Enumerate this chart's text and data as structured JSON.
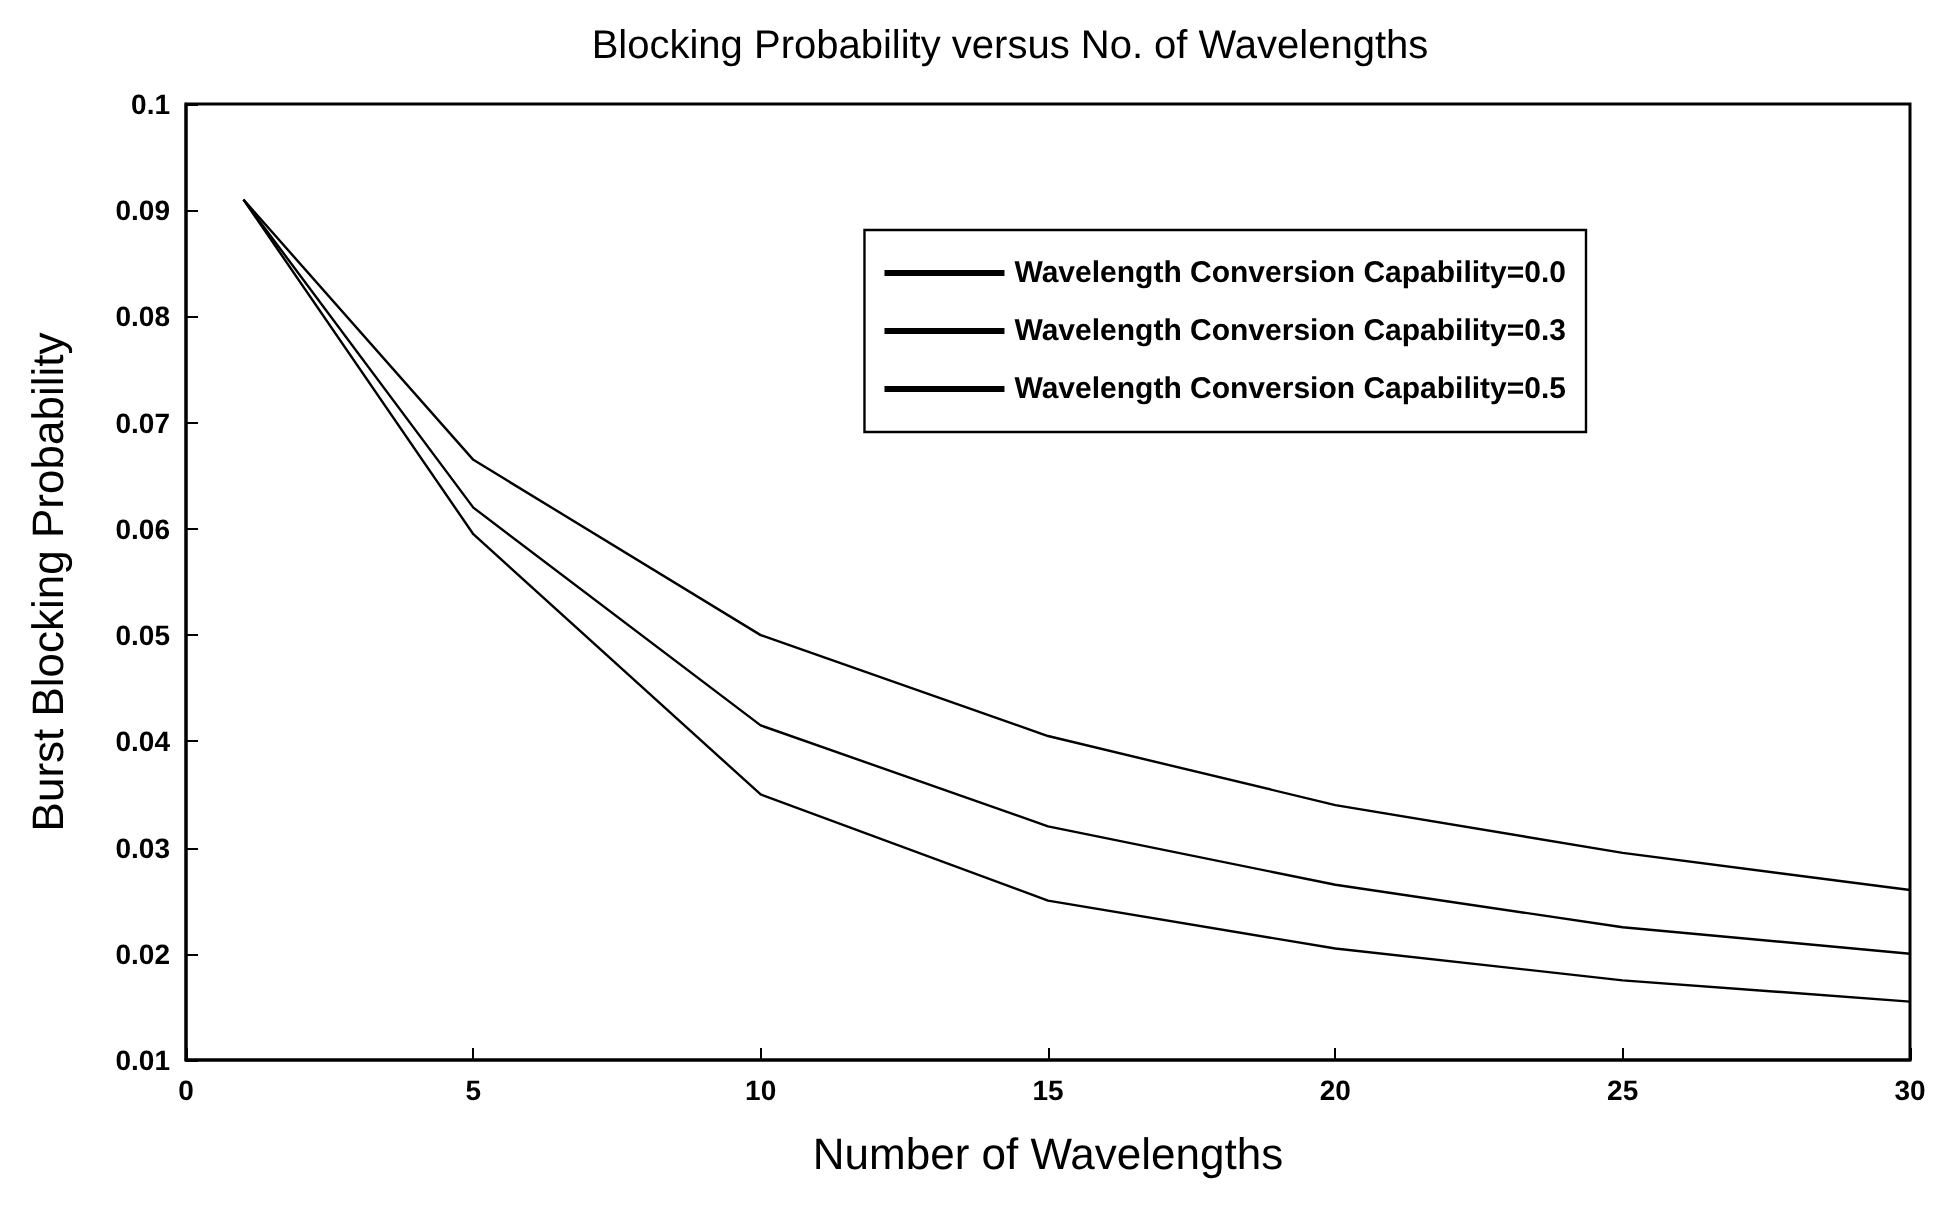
{
  "chart_data": {
    "type": "line",
    "title": "Blocking Probability versus No. of Wavelengths",
    "xlabel": "Number of Wavelengths",
    "ylabel": "Burst Blocking Probability",
    "x": [
      1,
      5,
      10,
      15,
      20,
      25,
      30
    ],
    "series": [
      {
        "name": "Wavelength Conversion Capability=0.0",
        "color": "#000000",
        "values": [
          0.091,
          0.0665,
          0.05,
          0.0405,
          0.034,
          0.0295,
          0.026
        ]
      },
      {
        "name": "Wavelength Conversion Capability=0.3",
        "color": "#000000",
        "values": [
          0.091,
          0.062,
          0.0415,
          0.032,
          0.0265,
          0.0225,
          0.02
        ]
      },
      {
        "name": "Wavelength Conversion Capability=0.5",
        "color": "#000000",
        "values": [
          0.091,
          0.0595,
          0.035,
          0.025,
          0.0205,
          0.0175,
          0.0155
        ]
      }
    ],
    "xlim": [
      0,
      30
    ],
    "xticks": [
      0,
      5,
      10,
      15,
      20,
      25,
      30
    ],
    "ylim": [
      0.01,
      0.1
    ],
    "yticks": [
      0.01,
      0.02,
      0.03,
      0.04,
      0.05,
      0.06,
      0.07,
      0.08,
      0.09,
      0.1
    ],
    "grid": false,
    "legend": "top right",
    "marker": "none",
    "line_style": "solid"
  }
}
